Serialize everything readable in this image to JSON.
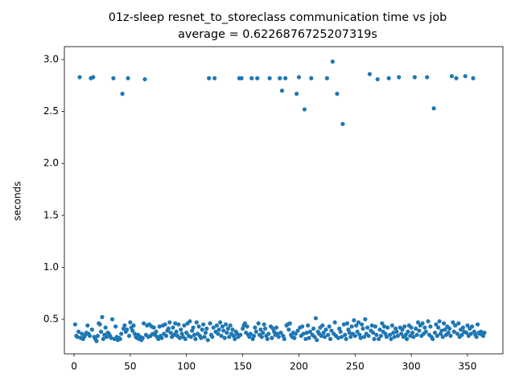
{
  "chart_data": {
    "type": "scatter",
    "title": "01z-sleep resnet_to_storeclass communication time vs job",
    "subtitle": "average = 0.6226876725207319s",
    "y_label": "seconds",
    "color": "#1f77b4",
    "xlim": [
      -8.6,
      381.5
    ],
    "ylim": [
      0.167,
      3.124
    ],
    "xticks": [
      0,
      50,
      100,
      150,
      200,
      250,
      300,
      350
    ],
    "yticks": [
      0.5,
      {
        "value": 1,
        "label": "1.0"
      },
      1.5,
      {
        "value": 2,
        "label": "2.0"
      },
      2.5,
      {
        "value": 3,
        "label": "3.0"
      }
    ],
    "x": [
      1,
      2,
      3,
      4,
      5,
      6,
      7,
      8,
      9,
      10,
      11,
      12,
      13,
      14,
      15,
      16,
      17,
      18,
      19,
      20,
      21,
      22,
      23,
      24,
      25,
      26,
      27,
      28,
      29,
      30,
      31,
      32,
      33,
      34,
      35,
      36,
      37,
      38,
      39,
      40,
      41,
      42,
      43,
      44,
      45,
      46,
      47,
      48,
      49,
      50,
      51,
      52,
      53,
      54,
      55,
      56,
      57,
      58,
      59,
      60,
      61,
      62,
      63,
      64,
      65,
      66,
      67,
      68,
      69,
      70,
      71,
      72,
      73,
      74,
      75,
      76,
      77,
      78,
      79,
      80,
      81,
      82,
      83,
      84,
      85,
      86,
      87,
      88,
      89,
      90,
      91,
      92,
      93,
      94,
      95,
      96,
      97,
      98,
      99,
      100,
      101,
      102,
      103,
      104,
      105,
      106,
      107,
      108,
      109,
      110,
      111,
      112,
      113,
      114,
      115,
      116,
      117,
      118,
      119,
      120,
      121,
      122,
      123,
      124,
      125,
      126,
      127,
      128,
      129,
      130,
      131,
      132,
      133,
      134,
      135,
      136,
      137,
      138,
      139,
      140,
      141,
      142,
      143,
      144,
      145,
      146,
      147,
      148,
      149,
      150,
      151,
      152,
      153,
      154,
      155,
      156,
      157,
      158,
      159,
      160,
      161,
      162,
      163,
      164,
      165,
      166,
      167,
      168,
      169,
      170,
      171,
      172,
      173,
      174,
      175,
      176,
      177,
      178,
      179,
      180,
      181,
      182,
      183,
      184,
      185,
      186,
      187,
      188,
      189,
      190,
      191,
      192,
      193,
      194,
      195,
      196,
      197,
      198,
      199,
      200,
      201,
      202,
      203,
      204,
      205,
      206,
      207,
      208,
      209,
      210,
      211,
      212,
      213,
      214,
      215,
      216,
      217,
      218,
      219,
      220,
      221,
      222,
      223,
      224,
      225,
      226,
      227,
      228,
      229,
      230,
      231,
      232,
      233,
      234,
      235,
      236,
      237,
      238,
      239,
      240,
      241,
      242,
      243,
      244,
      245,
      246,
      247,
      248,
      249,
      250,
      251,
      252,
      253,
      254,
      255,
      256,
      257,
      258,
      259,
      260,
      261,
      262,
      263,
      264,
      265,
      266,
      267,
      268,
      269,
      270,
      271,
      272,
      273,
      274,
      275,
      276,
      277,
      278,
      279,
      280,
      281,
      282,
      283,
      284,
      285,
      286,
      287,
      288,
      289,
      290,
      291,
      292,
      293,
      294,
      295,
      296,
      297,
      298,
      299,
      300,
      301,
      302,
      303,
      304,
      305,
      306,
      307,
      308,
      309,
      310,
      311,
      312,
      313,
      314,
      315,
      316,
      317,
      318,
      319,
      320,
      321,
      322,
      323,
      324,
      325,
      326,
      327,
      328,
      329,
      330,
      331,
      332,
      333,
      334,
      335,
      336,
      337,
      338,
      339,
      340,
      341,
      342,
      343,
      344,
      345,
      346,
      347,
      348,
      349,
      350,
      351,
      352,
      353,
      354,
      355,
      356,
      357,
      358,
      359,
      360,
      361,
      362,
      363,
      364,
      365
    ],
    "values": [
      0.45,
      0.34,
      0.33,
      0.38,
      2.83,
      0.32,
      0.36,
      0.31,
      0.33,
      0.35,
      0.37,
      0.44,
      0.36,
      0.34,
      2.82,
      0.4,
      2.83,
      0.33,
      0.31,
      0.29,
      0.34,
      0.46,
      0.45,
      0.38,
      0.52,
      0.31,
      0.35,
      0.42,
      0.33,
      0.37,
      0.36,
      0.34,
      0.32,
      0.5,
      2.82,
      0.31,
      0.43,
      0.33,
      0.3,
      0.32,
      0.31,
      0.36,
      2.67,
      0.41,
      0.44,
      0.38,
      0.4,
      2.82,
      0.34,
      0.47,
      0.42,
      0.39,
      0.44,
      0.36,
      0.33,
      0.32,
      0.35,
      0.31,
      0.33,
      0.3,
      0.32,
      0.46,
      2.81,
      0.35,
      0.44,
      0.33,
      0.45,
      0.34,
      0.43,
      0.36,
      0.42,
      0.35,
      0.38,
      0.33,
      0.31,
      0.43,
      0.34,
      0.32,
      0.44,
      0.36,
      0.45,
      0.34,
      0.39,
      0.41,
      0.47,
      0.37,
      0.33,
      0.42,
      0.35,
      0.46,
      0.38,
      0.34,
      0.45,
      0.32,
      0.4,
      0.36,
      0.33,
      0.44,
      0.31,
      0.37,
      0.46,
      0.34,
      0.48,
      0.33,
      0.39,
      0.42,
      0.35,
      0.31,
      0.47,
      0.36,
      0.43,
      0.34,
      0.32,
      0.4,
      0.45,
      0.33,
      0.37,
      0.41,
      0.3,
      2.82,
      0.46,
      0.35,
      0.33,
      0.42,
      2.82,
      0.38,
      0.44,
      0.36,
      0.4,
      0.47,
      0.34,
      0.43,
      0.39,
      0.32,
      0.45,
      0.37,
      0.41,
      0.33,
      0.44,
      0.36,
      0.4,
      0.34,
      0.31,
      0.38,
      0.36,
      0.33,
      2.82,
      0.35,
      2.82,
      0.41,
      0.44,
      0.46,
      0.37,
      0.43,
      0.35,
      0.33,
      0.36,
      2.82,
      0.31,
      0.34,
      0.42,
      0.38,
      2.82,
      0.46,
      0.35,
      0.4,
      0.33,
      0.37,
      0.45,
      0.41,
      0.34,
      0.31,
      0.36,
      2.82,
      0.43,
      0.32,
      0.41,
      0.38,
      0.35,
      0.42,
      0.36,
      0.33,
      2.82,
      0.37,
      2.7,
      0.34,
      0.31,
      2.82,
      0.44,
      0.45,
      0.4,
      0.46,
      0.35,
      0.33,
      0.37,
      0.32,
      0.36,
      2.67,
      0.39,
      2.83,
      0.42,
      0.34,
      0.43,
      0.36,
      2.52,
      0.31,
      0.37,
      0.44,
      0.32,
      0.38,
      2.82,
      0.35,
      0.41,
      0.33,
      0.51,
      0.3,
      0.38,
      0.36,
      0.42,
      0.34,
      0.44,
      0.37,
      0.33,
      0.4,
      2.82,
      0.35,
      0.43,
      0.31,
      0.39,
      2.98,
      0.36,
      0.47,
      0.34,
      2.67,
      0.32,
      0.41,
      0.38,
      0.33,
      2.38,
      0.45,
      0.35,
      0.31,
      0.46,
      0.4,
      0.37,
      0.33,
      0.43,
      0.36,
      0.49,
      0.34,
      0.44,
      0.38,
      0.47,
      0.35,
      0.32,
      0.45,
      0.41,
      0.33,
      0.5,
      0.36,
      0.42,
      0.34,
      2.86,
      0.39,
      0.44,
      0.37,
      0.31,
      0.43,
      0.35,
      2.81,
      0.31,
      0.4,
      0.34,
      0.46,
      0.38,
      0.43,
      0.36,
      0.33,
      0.42,
      2.82,
      0.35,
      0.31,
      0.44,
      0.37,
      0.33,
      0.41,
      0.38,
      0.34,
      2.83,
      0.42,
      0.36,
      0.4,
      0.33,
      0.43,
      0.35,
      0.31,
      0.38,
      0.44,
      0.34,
      0.42,
      0.37,
      0.33,
      2.83,
      0.41,
      0.35,
      0.47,
      0.39,
      0.44,
      0.34,
      0.46,
      0.36,
      0.42,
      0.38,
      2.83,
      0.48,
      0.35,
      0.43,
      0.33,
      0.31,
      2.53,
      0.37,
      0.45,
      0.34,
      0.42,
      0.48,
      0.36,
      0.39,
      0.33,
      0.46,
      0.4,
      0.35,
      0.43,
      0.37,
      0.41,
      0.34,
      2.84,
      0.47,
      0.38,
      0.44,
      2.82,
      0.36,
      0.46,
      0.33,
      0.4,
      0.35,
      0.42,
      0.38,
      2.84,
      0.37,
      0.44,
      0.34,
      0.41,
      0.36,
      0.43,
      2.82,
      0.38,
      0.35,
      0.33,
      0.45,
      0.37,
      0.36,
      0.38,
      0.35,
      0.34,
      0.37
    ]
  }
}
